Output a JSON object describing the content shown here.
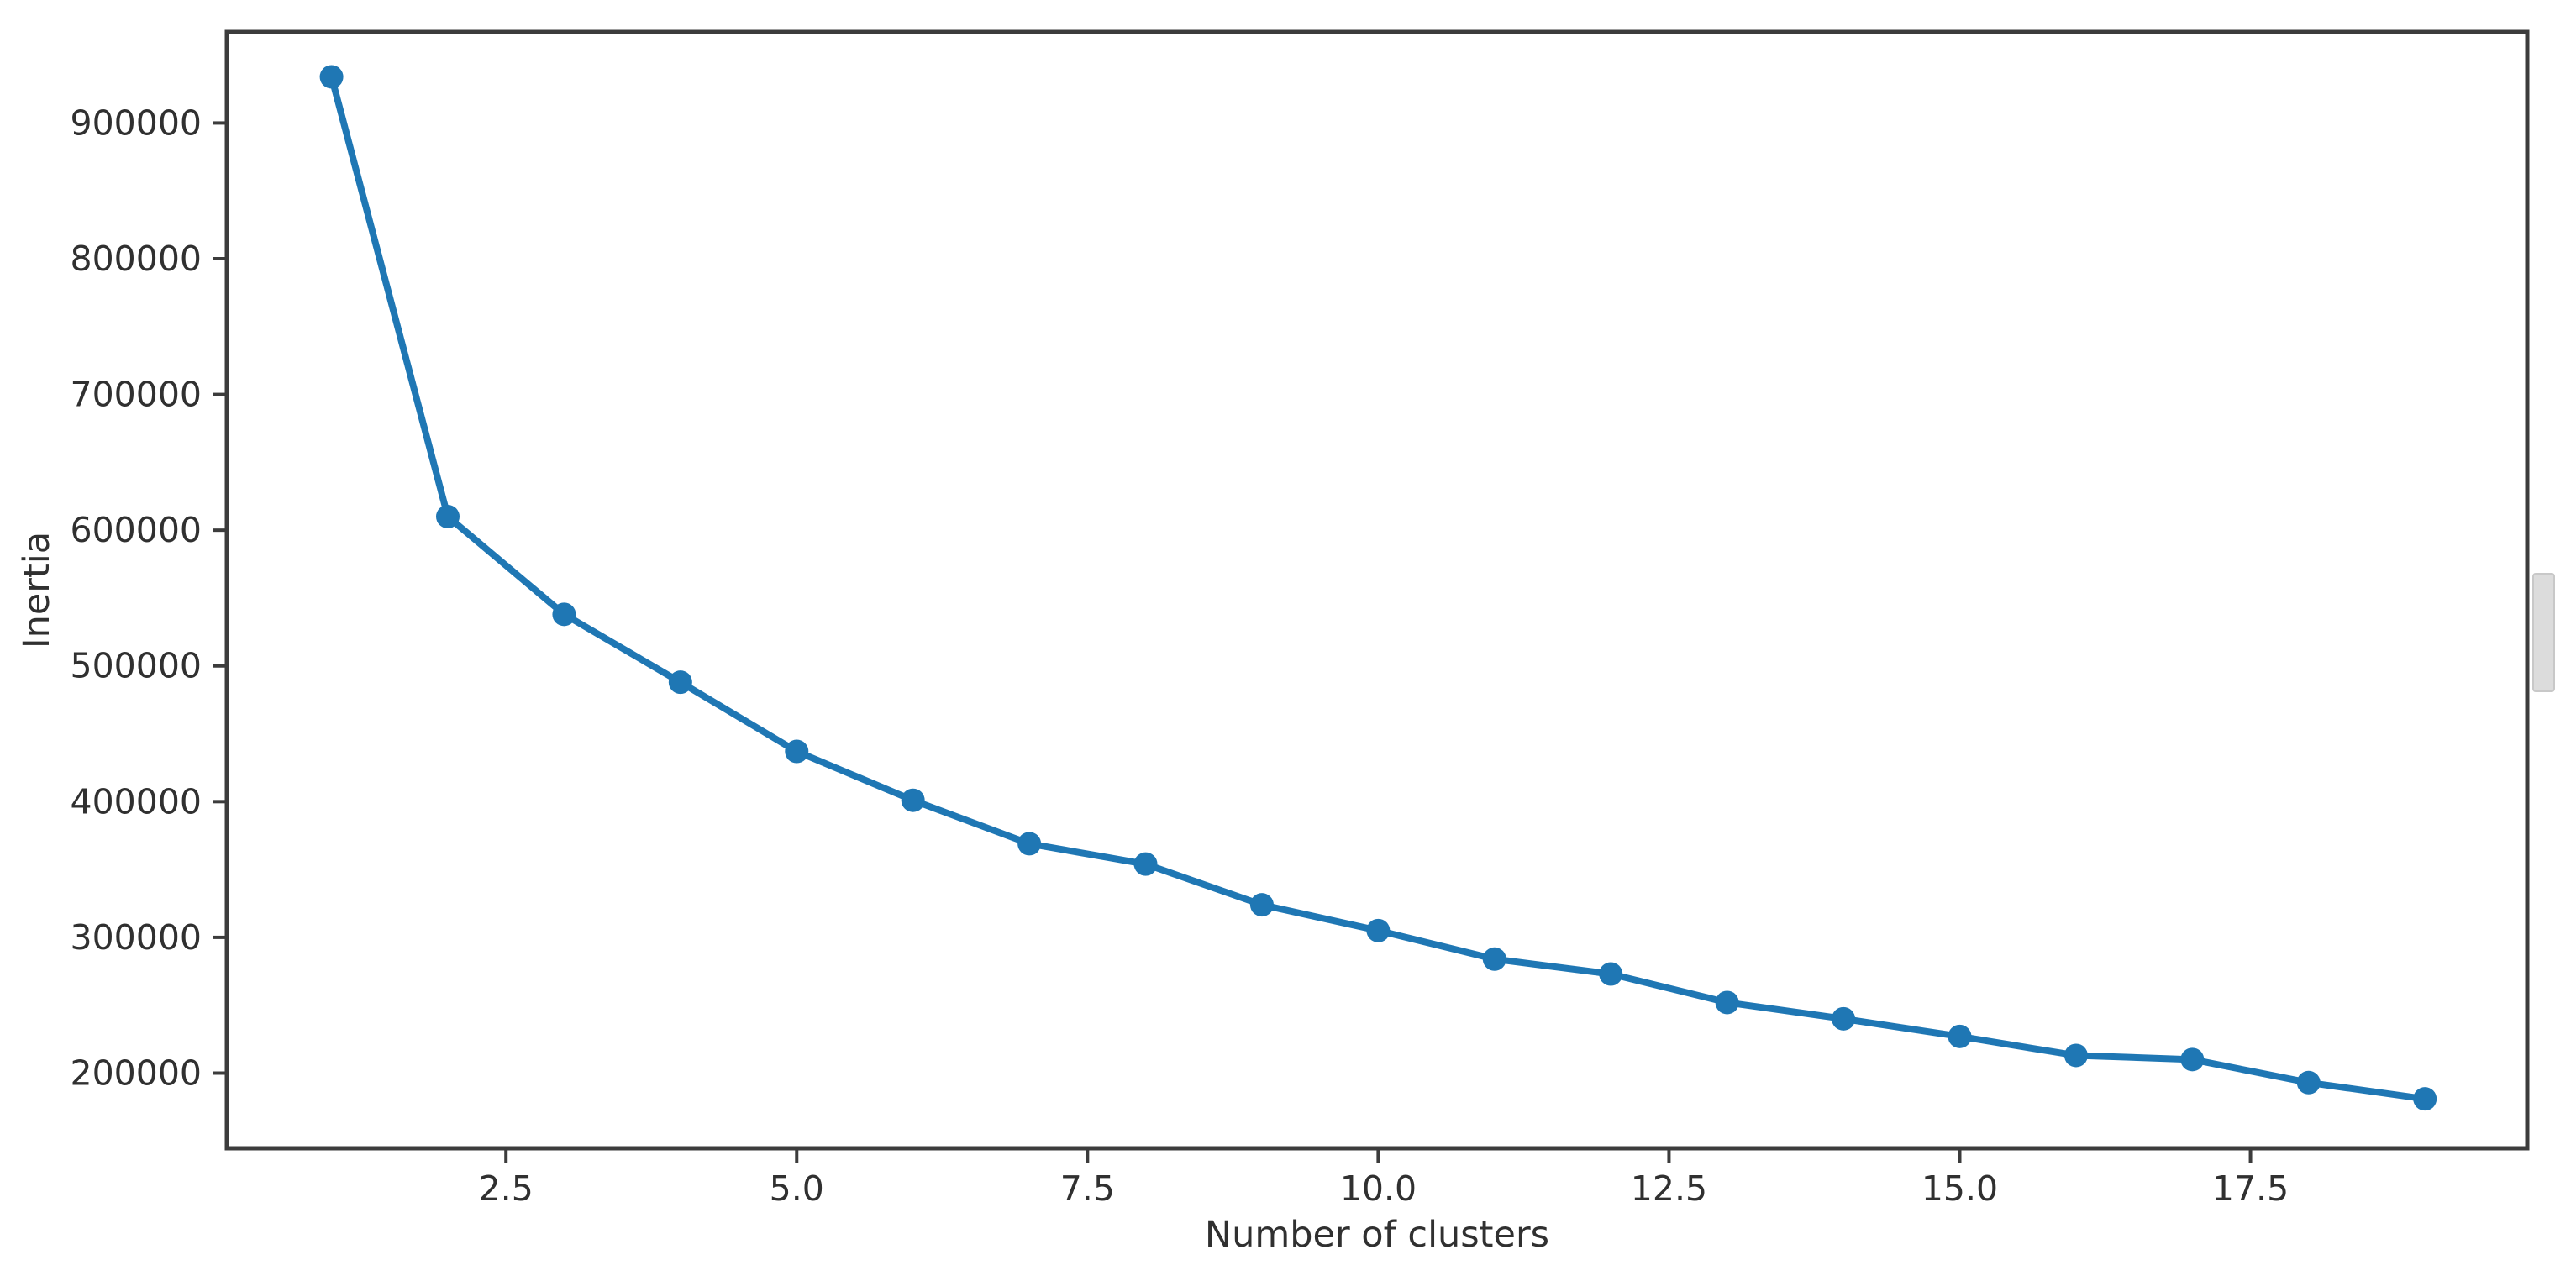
{
  "page": {
    "background": "#ffffff"
  },
  "scrollbar": {
    "thumb_color": "#dcdcdc",
    "thumb_border_color": "#c8c8c8"
  },
  "chart_data": {
    "type": "line",
    "title": "",
    "xlabel": "Number of clusters",
    "ylabel": "Inertia",
    "x": [
      1,
      2,
      3,
      4,
      5,
      6,
      7,
      8,
      9,
      10,
      11,
      12,
      13,
      14,
      15,
      16,
      17,
      18,
      19
    ],
    "y": [
      934000,
      610000,
      538000,
      488000,
      437000,
      401000,
      369000,
      354000,
      324000,
      305000,
      284000,
      273000,
      252000,
      240000,
      227000,
      213000,
      210000,
      193000,
      181000
    ],
    "series": [
      {
        "name": "inertia",
        "marker": "circle",
        "line_color": "#1f77b4",
        "marker_color": "#1f77b4"
      }
    ],
    "xticks": {
      "values": [
        2.5,
        5.0,
        7.5,
        10.0,
        12.5,
        15.0,
        17.5
      ],
      "labels": [
        "2.5",
        "5.0",
        "7.5",
        "10.0",
        "12.5",
        "15.0",
        "17.5"
      ]
    },
    "yticks": {
      "values": [
        200000,
        300000,
        400000,
        500000,
        600000,
        700000,
        800000,
        900000
      ],
      "labels": [
        "200000",
        "300000",
        "400000",
        "500000",
        "600000",
        "700000",
        "800000",
        "900000"
      ]
    },
    "xlim": [
      0.1,
      19.88
    ],
    "ylim": [
      144600,
      967100
    ],
    "grid": false,
    "legend": null,
    "spine_color": "#3c3c3c",
    "text_color": "#303030"
  }
}
